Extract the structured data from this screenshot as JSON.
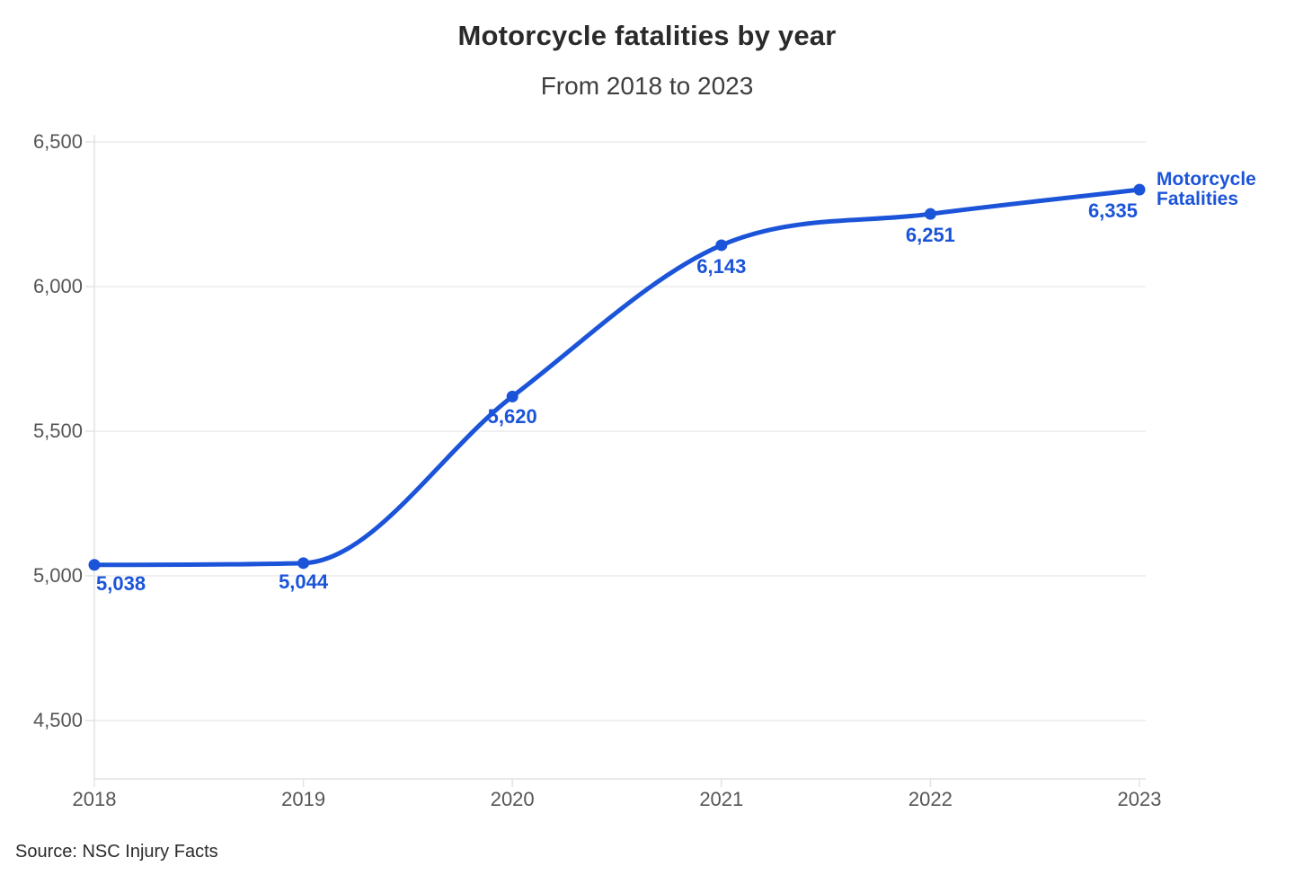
{
  "header": {
    "title": "Motorcycle fatalities by year",
    "subtitle": "From 2018 to 2023"
  },
  "chart_data": {
    "type": "line",
    "title": "Motorcycle fatalities by year",
    "subtitle": "From 2018 to 2023",
    "categories": [
      "2018",
      "2019",
      "2020",
      "2021",
      "2022",
      "2023"
    ],
    "series": [
      {
        "name": "Motorcycle Fatalities",
        "values": [
          5038,
          5044,
          5620,
          6143,
          6251,
          6335
        ],
        "color": "#1B54D9"
      }
    ],
    "point_labels": [
      "5,038",
      "5,044",
      "5,620",
      "6,143",
      "6,251",
      "6,335"
    ],
    "xlabel": "",
    "ylabel": "",
    "yticks": [
      4500,
      5000,
      5500,
      6000,
      6500
    ],
    "ytick_labels": [
      "4,500",
      "5,000",
      "5,500",
      "6,000",
      "6,500"
    ],
    "ylim": [
      4500,
      6500
    ],
    "grid": true,
    "legend_position": "right of last point",
    "line_style": "smooth"
  },
  "legend": {
    "label": "Motorcycle Fatalities"
  },
  "source": {
    "label": "Source: NSC Injury Facts"
  },
  "colors": {
    "accent_blue": "#1B54D9",
    "title_text": "#2A2A2A",
    "subtitle_text": "#3E3E3E",
    "axis_text": "#565656",
    "gridline": "#ECECEC",
    "axis_line": "#E2E2E2",
    "background": "#FFFFFF"
  }
}
